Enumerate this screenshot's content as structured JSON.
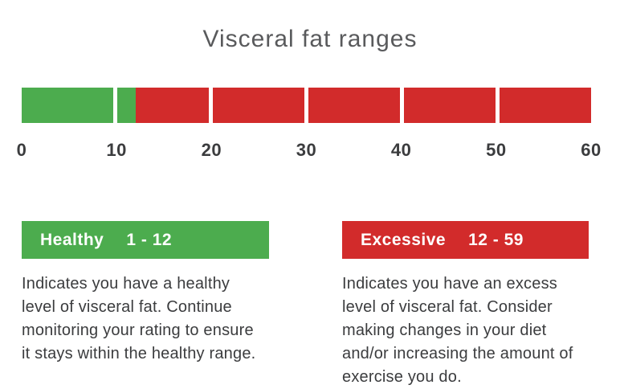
{
  "chart_data": {
    "type": "bar",
    "title": "Visceral fat ranges",
    "axis": {
      "min": 0,
      "max": 60,
      "ticks": [
        0,
        10,
        20,
        30,
        40,
        50,
        60
      ]
    },
    "segment_size": 10,
    "healthy_boundary": 12,
    "colors": {
      "healthy": "#4cac4e",
      "excessive": "#d22b2b",
      "gap": "#ffffff",
      "title_text": "#595a5c",
      "axis_text": "#3b3c3e",
      "legend_text": "#ffffff",
      "body_text": "#3b3c3e"
    },
    "ranges": [
      {
        "label": "Healthy",
        "range_label": "1 - 12",
        "min": 1,
        "max": 12,
        "color": "#4cac4e",
        "description_lines": [
          "Indicates you have a healthy",
          "level of visceral fat. Continue",
          "monitoring your rating to ensure",
          "it stays within the healthy range."
        ]
      },
      {
        "label": "Excessive",
        "range_label": "12 - 59",
        "min": 12,
        "max": 59,
        "color": "#d22b2b",
        "description_lines": [
          "Indicates you have an excess",
          "level of visceral fat. Consider",
          "making changes in your diet",
          "and/or increasing the amount of",
          "exercise you do."
        ]
      }
    ]
  }
}
